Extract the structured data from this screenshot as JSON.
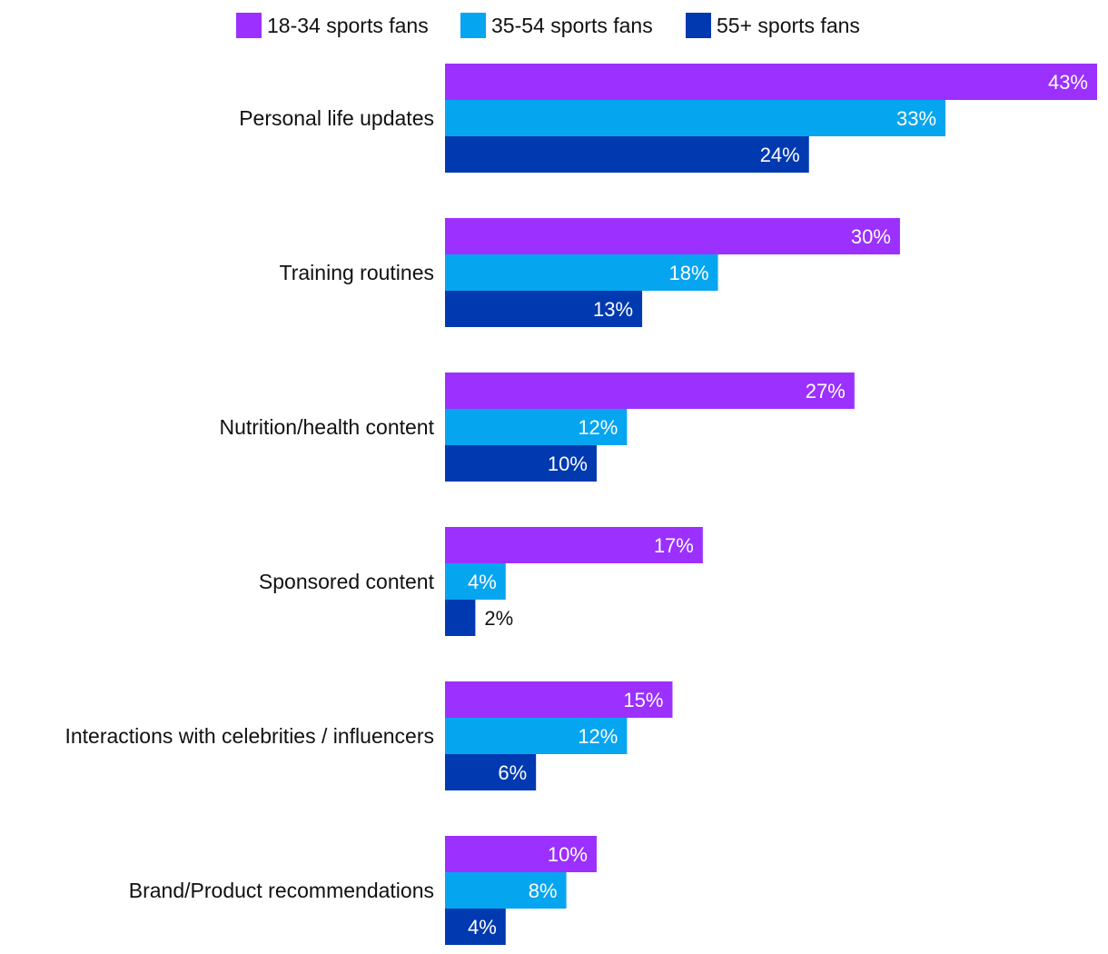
{
  "chart_data": {
    "type": "bar",
    "orientation": "horizontal",
    "categories": [
      "Personal life updates",
      "Training routines",
      "Nutrition/health content",
      "Sponsored content",
      "Interactions with celebrities / influencers",
      "Brand/Product recommendations"
    ],
    "series": [
      {
        "name": "18-34 sports fans",
        "color": "#9B30FF",
        "values": [
          43,
          30,
          27,
          17,
          15,
          10
        ],
        "labels": [
          "43%",
          "30%",
          "27%",
          "17%",
          "15%",
          "10%"
        ]
      },
      {
        "name": "35-54 sports fans",
        "color": "#06A5F0",
        "values": [
          33,
          18,
          12,
          4,
          12,
          8
        ],
        "labels": [
          "33%",
          "18%",
          "12%",
          "4%",
          "12%",
          "8%"
        ]
      },
      {
        "name": "55+ sports fans",
        "color": "#0039B0",
        "values": [
          24,
          13,
          10,
          2,
          6,
          4
        ],
        "labels": [
          "24%",
          "13%",
          "10%",
          "2%",
          "6%",
          "4%"
        ]
      }
    ],
    "value_unit": "%",
    "xlim": [
      0,
      43
    ],
    "grid": false,
    "legend_position": "top"
  }
}
